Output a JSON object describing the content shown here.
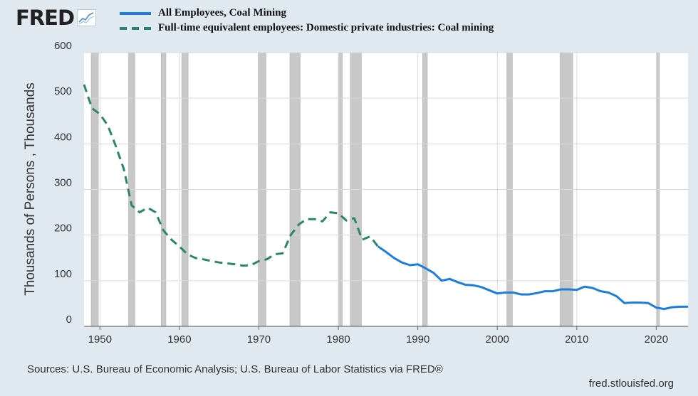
{
  "brand": {
    "logo_text": "FRED"
  },
  "legend": [
    {
      "label": "All Employees, Coal Mining",
      "style": "solid"
    },
    {
      "label": "Full-time equivalent employees: Domestic private industries: Coal mining",
      "style": "dashed"
    }
  ],
  "footer": {
    "sources": "Sources: U.S. Bureau of Economic Analysis; U.S. Bureau of Labor Statistics via FRED®",
    "credit": "fred.stlouisfed.org"
  },
  "chart_data": {
    "type": "line",
    "title": "",
    "xlabel": "",
    "ylabel": "Thousands of Persons , Thousands",
    "xlim": [
      1948,
      2024
    ],
    "ylim": [
      0,
      600
    ],
    "x_ticks": [
      "1950",
      "1960",
      "1970",
      "1980",
      "1990",
      "2000",
      "2010",
      "2020"
    ],
    "y_ticks": [
      "0",
      "100",
      "200",
      "300",
      "400",
      "500",
      "600"
    ],
    "grid": true,
    "colors": {
      "solid": "#1b7ede",
      "dashed": "#2a8470",
      "recession": "#c8c8c8"
    },
    "recessions": [
      [
        1948.9,
        1949.8
      ],
      [
        1953.6,
        1954.4
      ],
      [
        1957.7,
        1958.3
      ],
      [
        1960.3,
        1961.1
      ],
      [
        1969.9,
        1970.9
      ],
      [
        1973.9,
        1975.2
      ],
      [
        1980.0,
        1980.5
      ],
      [
        1981.5,
        1982.9
      ],
      [
        1990.6,
        1991.2
      ],
      [
        2001.2,
        2001.9
      ],
      [
        2007.9,
        2009.5
      ],
      [
        2020.1,
        2020.4
      ]
    ],
    "series": [
      {
        "name": "All Employees, Coal Mining",
        "style": "solid",
        "x": [
          1985,
          1986,
          1987,
          1988,
          1989,
          1990,
          1991,
          1992,
          1993,
          1994,
          1995,
          1996,
          1997,
          1998,
          1999,
          2000,
          2001,
          2002,
          2003,
          2004,
          2005,
          2006,
          2007,
          2008,
          2009,
          2010,
          2011,
          2012,
          2013,
          2014,
          2015,
          2016,
          2017,
          2018,
          2019,
          2020,
          2021,
          2022,
          2023,
          2024
        ],
        "y": [
          175,
          163,
          150,
          140,
          134,
          136,
          127,
          117,
          100,
          104,
          97,
          91,
          90,
          86,
          79,
          72,
          74,
          74,
          70,
          70,
          73,
          77,
          77,
          81,
          81,
          80,
          87,
          84,
          77,
          74,
          66,
          51,
          52,
          52,
          51,
          41,
          38,
          42,
          43,
          43
        ]
      },
      {
        "name": "Full-time equivalent employees: Domestic private industries: Coal mining",
        "style": "dashed",
        "x": [
          1948,
          1949,
          1950,
          1951,
          1952,
          1953,
          1954,
          1955,
          1956,
          1957,
          1958,
          1959,
          1960,
          1961,
          1962,
          1963,
          1964,
          1965,
          1966,
          1967,
          1968,
          1969,
          1970,
          1971,
          1972,
          1973,
          1974,
          1975,
          1976,
          1977,
          1978,
          1979,
          1980,
          1981,
          1982,
          1983,
          1984,
          1985
        ],
        "y": [
          530,
          478,
          465,
          440,
          395,
          345,
          265,
          250,
          260,
          250,
          210,
          190,
          175,
          158,
          150,
          147,
          143,
          140,
          138,
          136,
          133,
          134,
          143,
          147,
          158,
          160,
          200,
          223,
          235,
          235,
          230,
          250,
          248,
          232,
          237,
          190,
          197,
          175
        ]
      }
    ]
  }
}
